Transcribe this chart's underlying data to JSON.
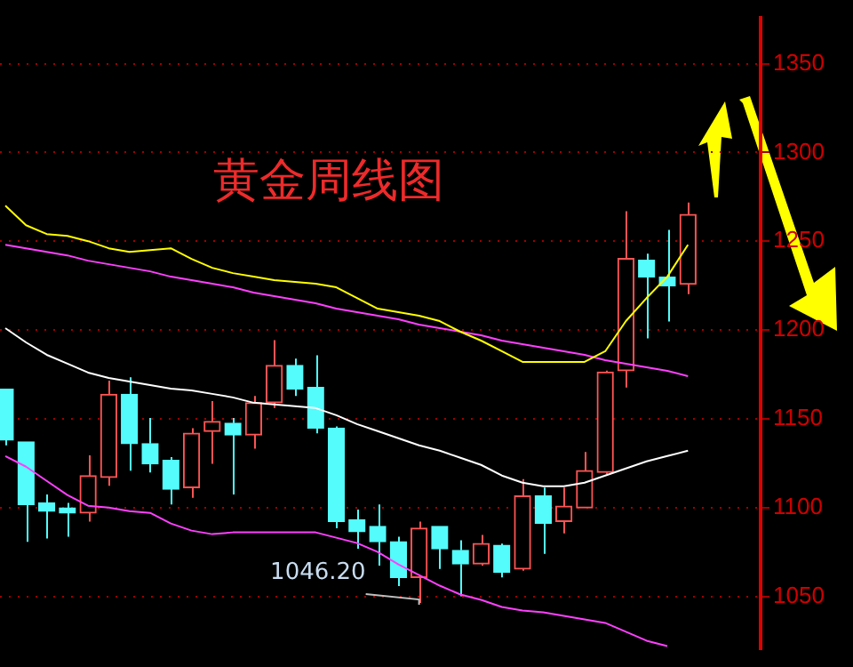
{
  "chart_data": {
    "type": "candlestick",
    "title": "黄金周线图",
    "categories": [
      null,
      null,
      null,
      null,
      null,
      null,
      null,
      null,
      null,
      null,
      null,
      null,
      null,
      null,
      null,
      null,
      null,
      null,
      null,
      null,
      null,
      null,
      null,
      null,
      null,
      null,
      null,
      null,
      null,
      null,
      null,
      null,
      null,
      null
    ],
    "ohlc": [
      [
        1166.6,
        1166.6,
        1135,
        1138
      ],
      [
        1137,
        1137,
        1080.7,
        1101.7
      ],
      [
        1102.6,
        1107.4,
        1082.6,
        1097.9
      ],
      [
        1099.8,
        1102.6,
        1083.5,
        1096.9
      ],
      [
        1096.9,
        1129.4,
        1092.1,
        1117.9
      ],
      [
        1117,
        1171.4,
        1112.2,
        1163.8
      ],
      [
        1163.8,
        1173.3,
        1120.8,
        1136
      ],
      [
        1136,
        1150.4,
        1119.8,
        1124.6
      ],
      [
        1126.5,
        1128.4,
        1101.7,
        1110.3
      ],
      [
        1111.2,
        1144.7,
        1105.5,
        1141.8
      ],
      [
        1142.8,
        1159.9,
        1124.6,
        1148.5
      ],
      [
        1147.5,
        1150.4,
        1107.4,
        1140.9
      ],
      [
        1140.9,
        1162.8,
        1133.2,
        1159
      ],
      [
        1159,
        1194.3,
        1156.1,
        1180
      ],
      [
        1180,
        1183.8,
        1162.8,
        1166.6
      ],
      [
        1167.6,
        1185.7,
        1141.8,
        1144.7
      ],
      [
        1144.7,
        1145.6,
        1088.3,
        1092.1
      ],
      [
        1093.1,
        1098.8,
        1076.8,
        1086.4
      ],
      [
        1089.3,
        1101.7,
        1067.3,
        1080.7
      ],
      [
        1080.7,
        1083.5,
        1055.8,
        1060.6
      ],
      [
        1060.6,
        1092.1,
        1046.2,
        1088.3
      ],
      [
        1089.3,
        1089.3,
        1065.4,
        1076.8
      ],
      [
        1075.9,
        1081.6,
        1050,
        1068.2
      ],
      [
        1068.2,
        1084.5,
        1067.3,
        1079.7
      ],
      [
        1078.7,
        1079.7,
        1060.6,
        1063.5
      ],
      [
        1065.4,
        1116,
        1064.4,
        1106.5
      ],
      [
        1106.5,
        1111.2,
        1073.9,
        1091.2
      ],
      [
        1092.1,
        1111.2,
        1085.4,
        1100.8
      ],
      [
        1099.8,
        1131.3,
        1099.8,
        1120.8
      ],
      [
        1119.8,
        1177.1,
        1118.9,
        1176.2
      ],
      [
        1177.1,
        1266.9,
        1167.6,
        1240.2
      ],
      [
        1239.2,
        1243,
        1195.3,
        1229.7
      ],
      [
        1229.7,
        1256.4,
        1204.8,
        1224.9
      ],
      [
        1225.8,
        1271.7,
        1220.1,
        1265
      ]
    ],
    "colors": [
      "#54fcfc",
      "#54fcfc",
      "#54fcfc",
      "#54fcfc",
      "#ff5454",
      "#ff5454",
      "#54fcfc",
      "#54fcfc",
      "#54fcfc",
      "#ff5454",
      "#ff5454",
      "#54fcfc",
      "#ff5454",
      "#ff5454",
      "#54fcfc",
      "#54fcfc",
      "#54fcfc",
      "#54fcfc",
      "#54fcfc",
      "#54fcfc",
      "#ff5454",
      "#54fcfc",
      "#54fcfc",
      "#ff5454",
      "#54fcfc",
      "#ff5454",
      "#54fcfc",
      "#ff5454",
      "#ff5454",
      "#ff5454",
      "#ff5454",
      "#54fcfc",
      "#54fcfc",
      "#ff5454"
    ],
    "series": [
      {
        "type": "line",
        "color": "#ffff00",
        "values": [
          1270,
          1259,
          1254,
          1253,
          1250,
          1246,
          1244,
          1245,
          1246,
          1240,
          1235,
          1232,
          1230,
          1228,
          1227,
          1226,
          1224,
          1218,
          1212,
          1210,
          1208,
          1205,
          1199,
          1194,
          1188,
          1182,
          1182,
          1182,
          1182,
          1188,
          1205,
          1218,
          1230,
          1248
        ]
      },
      {
        "type": "line",
        "color": "#ff40ff",
        "values": [
          1248,
          1246,
          1244,
          1242,
          1239,
          1237,
          1235,
          1233,
          1230,
          1228,
          1226,
          1224,
          1221,
          1219,
          1217,
          1215,
          1212,
          1210,
          1208,
          1206,
          1203,
          1201,
          1199,
          1197,
          1194,
          1192,
          1190,
          1188,
          1186,
          1183,
          1181,
          1179,
          1177,
          1174
        ]
      },
      {
        "type": "line",
        "color": "#ffffff",
        "values": [
          1201,
          1193,
          1186,
          1181,
          1176,
          1173,
          1171,
          1169,
          1167,
          1166,
          1164,
          1162,
          1159,
          1158,
          1157,
          1156,
          1152,
          1147,
          1143,
          1139,
          1135,
          1132,
          1128,
          1124,
          1118,
          1114,
          1112,
          1112,
          1114,
          1118,
          1122,
          1126,
          1129,
          1132
        ]
      },
      {
        "type": "line",
        "color": "#ff40ff",
        "values": [
          1129,
          1123,
          1115,
          1107,
          1101,
          1100,
          1098,
          1097,
          1091,
          1087,
          1085,
          1086,
          1086,
          1086,
          1086,
          1086,
          1083,
          1080,
          1075,
          1068,
          1062,
          1056,
          1051,
          1048,
          1044,
          1042,
          1041,
          1039,
          1037,
          1035,
          1030,
          1025,
          1022,
          null
        ]
      }
    ],
    "annotations": [
      "1046.20"
    ],
    "ylim": [
      1020,
      1376
    ],
    "yticks": [
      1050,
      1100,
      1150,
      1200,
      1250,
      1300,
      1350
    ],
    "grid": "y",
    "legend": false,
    "tick_labels": "y"
  }
}
